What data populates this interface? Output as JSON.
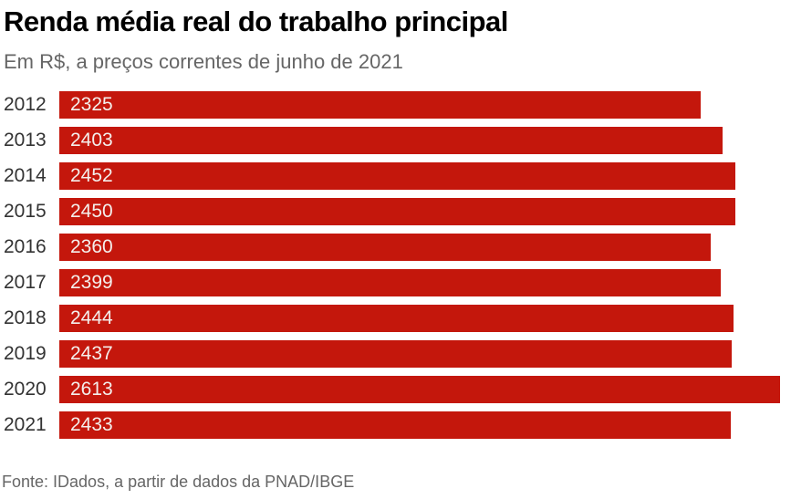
{
  "title": "Renda média real do trabalho principal",
  "subtitle": "Em R$, a preços correntes de junho de 2021",
  "source": "Fonte: IDados, a partir de dados da PNAD/IBGE",
  "colors": {
    "bar": "#c4170c",
    "title": "#000000",
    "subtitle": "#666666",
    "year_label": "#333333",
    "value_label": "#f4efec",
    "source": "#666666",
    "background": "#ffffff"
  },
  "chart_data": {
    "type": "bar",
    "orientation": "horizontal",
    "title": "Renda média real do trabalho principal",
    "subtitle": "Em R$, a preços correntes de junho de 2021",
    "source": "Fonte: IDados, a partir de dados da PNAD/IBGE",
    "categories": [
      "2012",
      "2013",
      "2014",
      "2015",
      "2016",
      "2017",
      "2018",
      "2019",
      "2020",
      "2021"
    ],
    "values": [
      2325,
      2403,
      2452,
      2450,
      2360,
      2399,
      2444,
      2437,
      2613,
      2433
    ],
    "xlabel": "",
    "ylabel": "",
    "xlim": [
      0,
      2613
    ],
    "grid": false,
    "axes_visible": false,
    "legend": "none",
    "value_labels_inside_bars": true
  }
}
